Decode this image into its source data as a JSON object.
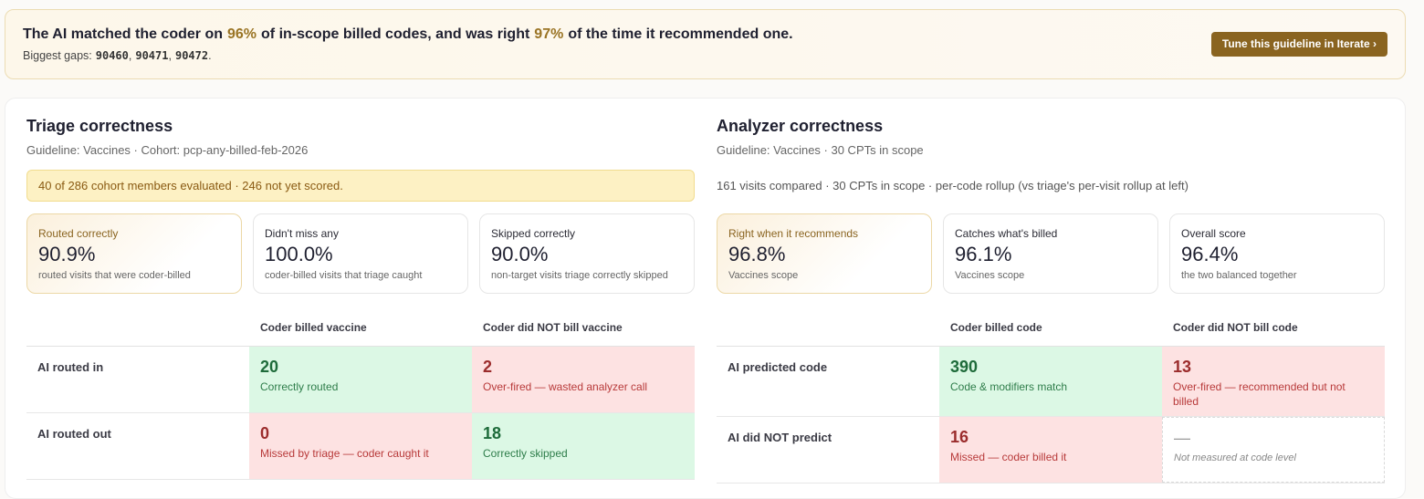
{
  "banner": {
    "headline": [
      "The AI matched the coder on",
      "96%",
      "of in-scope billed codes, and was right",
      "97%",
      "of the time it recommended one."
    ],
    "gaps": [
      "Biggest gaps:",
      "90460",
      ",",
      "90471",
      ",",
      "90472",
      "."
    ],
    "button": "Tune this guideline in Iterate ›"
  },
  "panels": [
    {
      "title": "Triage correctness",
      "subtitle": "Guideline: Vaccines · Cohort: pcp-any-billed-feb-2026",
      "note": "40 of 286 cohort members evaluated · 246 not yet scored.",
      "note_style": "warning",
      "metrics": [
        {
          "label": "Routed correctly",
          "value": "90.9%",
          "caption": "routed visits that were coder-billed",
          "highlight": true
        },
        {
          "label": "Didn't miss any",
          "value": "100.0%",
          "caption": "coder-billed visits that triage caught",
          "highlight": false
        },
        {
          "label": "Skipped correctly",
          "value": "90.0%",
          "caption": "non-target visits triage correctly skipped",
          "highlight": false
        }
      ],
      "matrix": {
        "columns": [
          "Coder billed vaccine",
          "Coder did NOT bill vaccine"
        ],
        "rows": [
          {
            "label": "AI routed in",
            "cells": [
              {
                "value": "20",
                "caption": "Correctly routed",
                "tone": "good"
              },
              {
                "value": "2",
                "caption": "Over-fired — wasted analyzer call",
                "tone": "bad"
              }
            ]
          },
          {
            "label": "AI routed out",
            "cells": [
              {
                "value": "0",
                "caption": "Missed by triage — coder caught it",
                "tone": "bad"
              },
              {
                "value": "18",
                "caption": "Correctly skipped",
                "tone": "good"
              }
            ]
          }
        ]
      }
    },
    {
      "title": "Analyzer correctness",
      "subtitle": "Guideline: Vaccines · 30 CPTs in scope",
      "note": "161 visits compared · 30 CPTs in scope · per-code rollup (vs triage's per-visit rollup at left)",
      "note_style": "plain",
      "metrics": [
        {
          "label": "Right when it recommends",
          "value": "96.8%",
          "caption": "Vaccines scope",
          "highlight": true
        },
        {
          "label": "Catches what's billed",
          "value": "96.1%",
          "caption": "Vaccines scope",
          "highlight": false
        },
        {
          "label": "Overall score",
          "value": "96.4%",
          "caption": "the two balanced together",
          "highlight": false
        }
      ],
      "matrix": {
        "columns": [
          "Coder billed code",
          "Coder did NOT bill code"
        ],
        "rows": [
          {
            "label": "AI predicted code",
            "cells": [
              {
                "value": "390",
                "caption": "Code & modifiers match",
                "tone": "good"
              },
              {
                "value": "13",
                "caption": "Over-fired — recommended but not billed",
                "tone": "bad"
              }
            ]
          },
          {
            "label": "AI did NOT predict",
            "cells": [
              {
                "value": "16",
                "caption": "Missed — coder billed it",
                "tone": "bad"
              },
              {
                "value": "—",
                "caption": "Not measured at code level",
                "tone": "none"
              }
            ]
          }
        ]
      }
    }
  ]
}
